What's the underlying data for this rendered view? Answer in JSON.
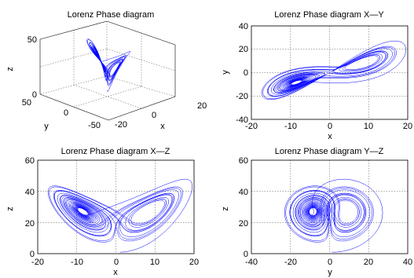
{
  "chart_data": [
    {
      "type": "line",
      "projection": "3d",
      "title": "Lorenz Phase diagram",
      "xlabel": "x",
      "ylabel": "y",
      "zlabel": "z",
      "xlim": [
        -20,
        20
      ],
      "ylim": [
        -50,
        50
      ],
      "zlim": [
        0,
        50
      ],
      "xticks": [
        -20,
        0,
        20
      ],
      "yticks": [
        -50,
        0,
        50
      ],
      "zticks": [
        0,
        50
      ],
      "grid": true,
      "series": [
        {
          "x": [],
          "y": [],
          "z": [],
          "color": "#0000ff"
        }
      ]
    },
    {
      "type": "line",
      "title": "Lorenz Phase diagram X—Y",
      "xlabel": "x",
      "ylabel": "y",
      "xlim": [
        -20,
        20
      ],
      "ylim": [
        -40,
        40
      ],
      "xticks": [
        -20,
        -10,
        0,
        10,
        20
      ],
      "yticks": [
        -40,
        -20,
        0,
        20,
        40
      ],
      "grid": true,
      "series": [
        {
          "x": [],
          "y": [],
          "color": "#0000ff"
        }
      ]
    },
    {
      "type": "line",
      "title": "Lorenz Phase diagram X—Z",
      "xlabel": "x",
      "ylabel": "z",
      "xlim": [
        -20,
        20
      ],
      "ylim": [
        0,
        60
      ],
      "xticks": [
        -20,
        -10,
        0,
        10,
        20
      ],
      "yticks": [
        0,
        20,
        40,
        60
      ],
      "grid": true,
      "series": [
        {
          "x": [],
          "y": [],
          "color": "#0000ff"
        }
      ]
    },
    {
      "type": "line",
      "title": "Lorenz Phase diagram Y—Z",
      "xlabel": "y",
      "ylabel": "z",
      "xlim": [
        -40,
        40
      ],
      "ylim": [
        0,
        60
      ],
      "xticks": [
        -40,
        -20,
        0,
        20,
        40
      ],
      "yticks": [
        0,
        20,
        40,
        60
      ],
      "grid": true,
      "series": [
        {
          "x": [],
          "y": [],
          "color": "#0000ff"
        }
      ]
    }
  ]
}
